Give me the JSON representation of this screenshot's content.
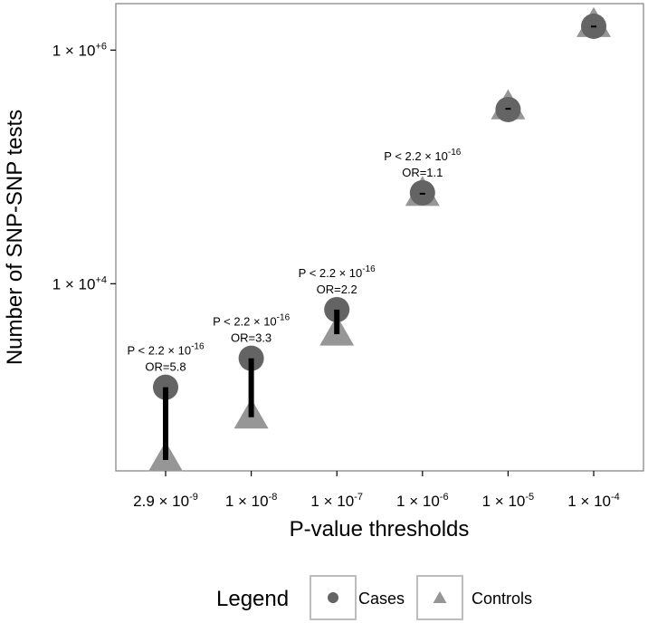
{
  "chart_data": {
    "type": "scatter",
    "xlabel": "P-value thresholds",
    "ylabel": "Number of SNP-SNP tests",
    "y_scale": "log10",
    "ylim": [
      250,
      2500000
    ],
    "x_categories": [
      {
        "mantissa": "2.9",
        "exponent": "-9"
      },
      {
        "mantissa": "1",
        "exponent": "-8"
      },
      {
        "mantissa": "1",
        "exponent": "-7"
      },
      {
        "mantissa": "1",
        "exponent": "-6"
      },
      {
        "mantissa": "1",
        "exponent": "-5"
      },
      {
        "mantissa": "1",
        "exponent": "-4"
      }
    ],
    "y_ticks": [
      {
        "value": 10000,
        "mantissa": "1",
        "exponent": "+4"
      },
      {
        "value": 1000000,
        "mantissa": "1",
        "exponent": "+6"
      }
    ],
    "series": [
      {
        "name": "Cases",
        "shape": "circle",
        "color": "#646464",
        "values": [
          1300,
          2300,
          6000,
          60000,
          310000,
          1600000
        ]
      },
      {
        "name": "Controls",
        "shape": "triangle",
        "color": "#969696",
        "values": [
          310,
          720,
          3700,
          58000,
          320000,
          1620000
        ]
      }
    ],
    "annotations": [
      {
        "category_index": 0,
        "p_text": "P < 2.2",
        "p_exponent": "-16",
        "or_text": "OR=5.8"
      },
      {
        "category_index": 1,
        "p_text": "P < 2.2",
        "p_exponent": "-16",
        "or_text": "OR=3.3"
      },
      {
        "category_index": 2,
        "p_text": "P < 2.2",
        "p_exponent": "-16",
        "or_text": "OR=2.2"
      },
      {
        "category_index": 3,
        "p_text": "P < 2.2",
        "p_exponent": "-16",
        "or_text": "OR=1.1"
      }
    ],
    "grid": false,
    "legend": {
      "title": "Legend",
      "position": "bottom",
      "items": [
        {
          "label": "Cases",
          "shape": "circle",
          "color": "#646464"
        },
        {
          "label": "Controls",
          "shape": "triangle",
          "color": "#969696"
        }
      ]
    }
  }
}
